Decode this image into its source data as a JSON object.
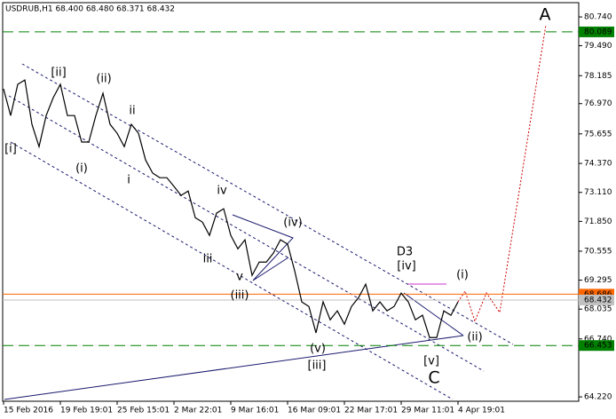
{
  "chart_data": {
    "type": "line",
    "title": "USDRUB,H1  68.400 68.480 68.371 68.432",
    "categories": [
      "15 Feb 2016",
      null,
      null,
      null,
      null,
      null,
      null,
      null,
      "19 Feb 19:01",
      null,
      null,
      null,
      null,
      null,
      null,
      null,
      "25 Feb 15:01",
      null,
      null,
      null,
      null,
      null,
      null,
      null,
      "2 Mar 22:01",
      null,
      null,
      null,
      null,
      null,
      null,
      null,
      "9 Mar 16:01",
      null,
      null,
      null,
      null,
      null,
      null,
      null,
      "16 Mar 09:01",
      null,
      null,
      null,
      null,
      null,
      null,
      null,
      "22 Mar 17:01",
      null,
      null,
      null,
      null,
      null,
      null,
      null,
      "29 Mar 11:01",
      null,
      null,
      null,
      null,
      null,
      null,
      null,
      "4 Apr 19:01"
    ],
    "series": [
      {
        "name": "USDRUB,H1",
        "color": "#000000",
        "values": [
          77.61,
          76.45,
          77.81,
          78.0,
          76.07,
          75.1,
          76.45,
          77.23,
          77.81,
          76.45,
          76.45,
          75.3,
          75.3,
          76.45,
          77.42,
          76.07,
          75.68,
          75.1,
          76.07,
          75.68,
          74.52,
          73.95,
          73.75,
          73.75,
          73.37,
          72.98,
          73.17,
          72.01,
          71.82,
          71.24,
          72.21,
          72.4,
          71.24,
          70.66,
          71.05,
          69.5,
          70.08,
          70.08,
          70.47,
          71.05,
          70.86,
          69.7,
          68.35,
          68.15,
          67.0,
          68.35,
          67.57,
          67.96,
          67.38,
          68.15,
          68.54,
          69.12,
          67.96,
          68.35,
          67.96,
          68.15,
          68.73,
          68.35,
          67.57,
          67.77,
          66.8,
          66.8,
          67.96,
          67.77,
          68.35
        ]
      }
    ],
    "ylim": [
      64.03,
      81.36
    ],
    "yticks": [
      {
        "value": 80.74,
        "label": "80.740"
      },
      {
        "value": 79.49,
        "label": "79.490"
      },
      {
        "value": 78.185,
        "label": "78.185"
      },
      {
        "value": 76.97,
        "label": "76.970"
      },
      {
        "value": 75.655,
        "label": "75.655"
      },
      {
        "value": 74.37,
        "label": "74.370"
      },
      {
        "value": 73.11,
        "label": "73.110"
      },
      {
        "value": 71.85,
        "label": "71.850"
      },
      {
        "value": 70.555,
        "label": "70.555"
      },
      {
        "value": 69.295,
        "label": "69.295"
      },
      {
        "value": 68.035,
        "label": "68.035"
      },
      {
        "value": 66.74,
        "label": "66.740"
      },
      {
        "value": 64.22,
        "label": "64.220"
      }
    ],
    "levels": [
      {
        "value": 80.089,
        "label": "80.089",
        "color": "#008000",
        "style": "dash"
      },
      {
        "value": 66.453,
        "label": "66.453",
        "color": "#008000",
        "style": "dash"
      },
      {
        "value": 68.686,
        "label": "68.686",
        "color": "#ff6600",
        "style": "solid"
      },
      {
        "value": 68.432,
        "label": "68.432",
        "color": "#c0c0c0",
        "style": "solid"
      }
    ],
    "annotations": [
      {
        "text": "[ii]",
        "color": "#2e8b2e"
      },
      {
        "text": "(ii)",
        "color": "#333399"
      },
      {
        "text": "ii",
        "color": "#8b1a1a"
      },
      {
        "text": "[i]",
        "color": "#2e8b2e"
      },
      {
        "text": "(i)",
        "color": "#333399"
      },
      {
        "text": "i",
        "color": "#8b1a1a"
      },
      {
        "text": "iv",
        "color": "#8b1a1a"
      },
      {
        "text": "(iv)",
        "color": "#333399"
      },
      {
        "text": "iii",
        "color": "#8b1a1a"
      },
      {
        "text": "v",
        "color": "#8b1a1a"
      },
      {
        "text": "(iii)",
        "color": "#333399"
      },
      {
        "text": "(v)",
        "color": "#333399"
      },
      {
        "text": "[iii]",
        "color": "#2e8b2e"
      },
      {
        "text": "D3",
        "color": "#333399"
      },
      {
        "text": "[iv]",
        "color": "#2e8b2e"
      },
      {
        "text": "(i)",
        "color": "#333399"
      },
      {
        "text": "(ii)",
        "color": "#333399"
      },
      {
        "text": "[v]",
        "color": "#2e8b2e"
      },
      {
        "text": "C",
        "color": "#8b1a1a"
      },
      {
        "text": "A",
        "color": "#8b1a1a"
      }
    ]
  }
}
